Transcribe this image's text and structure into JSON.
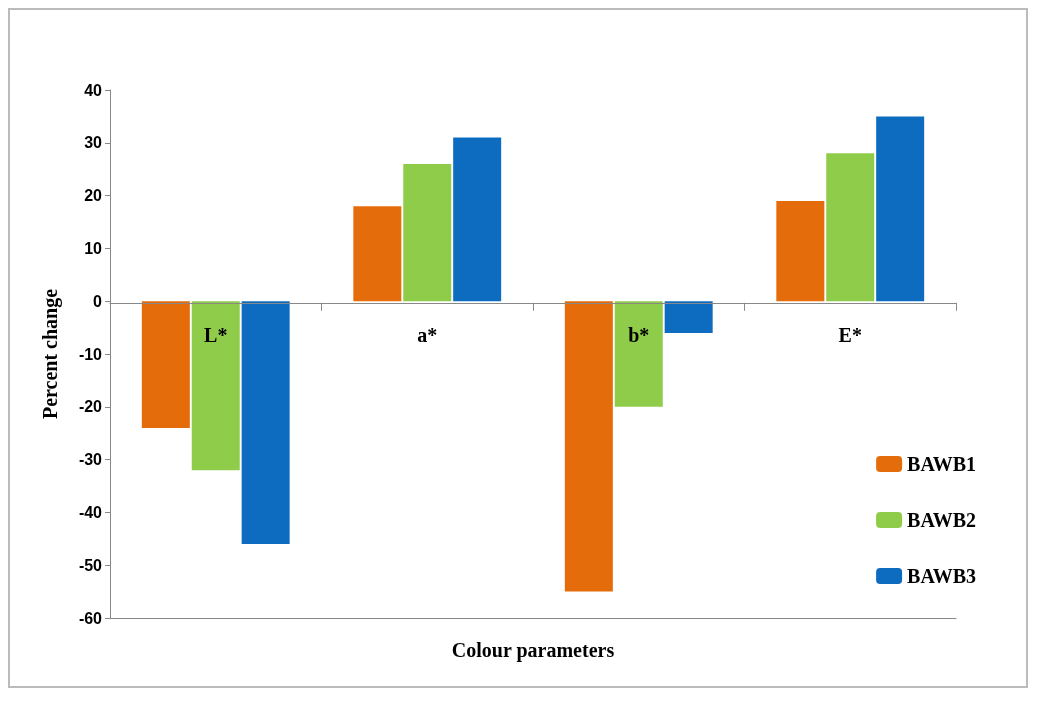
{
  "chart_data": {
    "type": "bar",
    "xlabel": "Colour parameters",
    "ylabel": "Percent change",
    "categories": [
      "L*",
      "a*",
      "b*",
      "E*"
    ],
    "series": [
      {
        "name": "BAWB1",
        "color": "#e46c0a",
        "values": [
          -24,
          18,
          -55,
          19
        ]
      },
      {
        "name": "BAWB2",
        "color": "#8fcc4a",
        "values": [
          -32,
          26,
          -20,
          28
        ]
      },
      {
        "name": "BAWB3",
        "color": "#0e6cc0",
        "values": [
          -46,
          31,
          -6,
          35
        ]
      }
    ],
    "ylim": [
      -60,
      40
    ],
    "yticks": [
      -60,
      -50,
      -40,
      -30,
      -20,
      -10,
      0,
      10,
      20,
      30,
      40
    ],
    "grid": false,
    "legend": "bottom right"
  }
}
